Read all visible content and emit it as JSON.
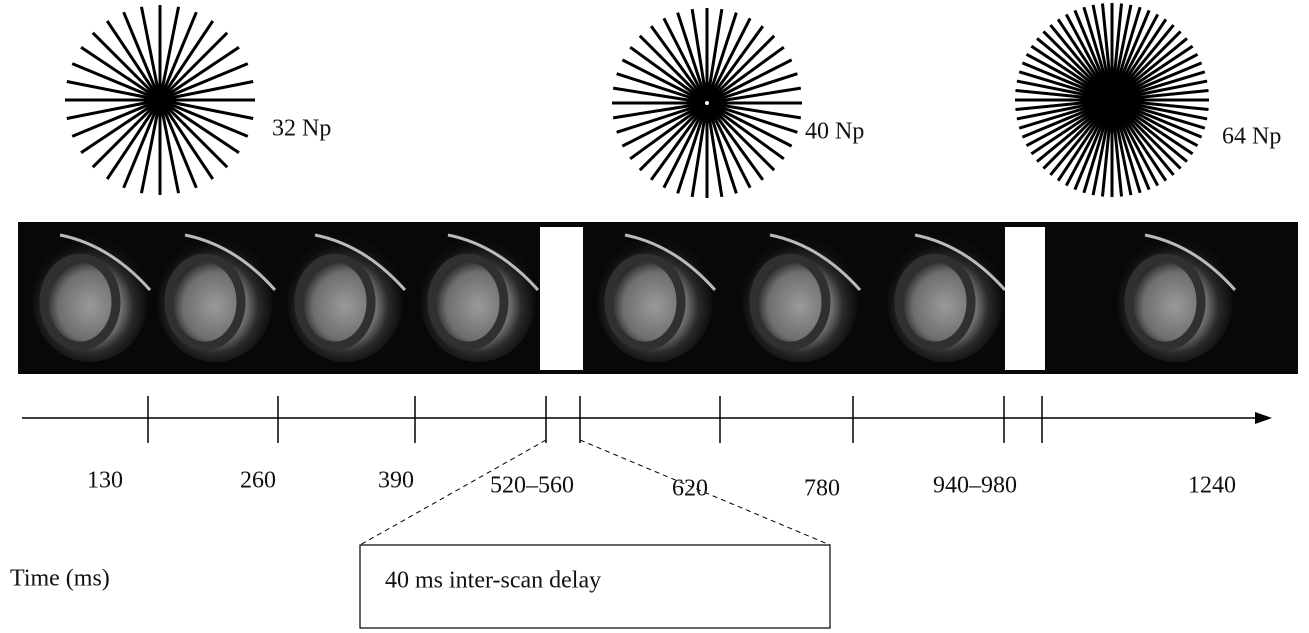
{
  "stars": [
    {
      "label": "32 Np"
    },
    {
      "label": "40 Np"
    },
    {
      "label": "64 Np"
    }
  ],
  "timeline": {
    "labels": [
      "130",
      "260",
      "390",
      "520–560",
      "620",
      "780",
      "940–980",
      "1240"
    ],
    "axis_label": "Time (ms)"
  },
  "callout": {
    "text": "40 ms inter-scan delay"
  }
}
